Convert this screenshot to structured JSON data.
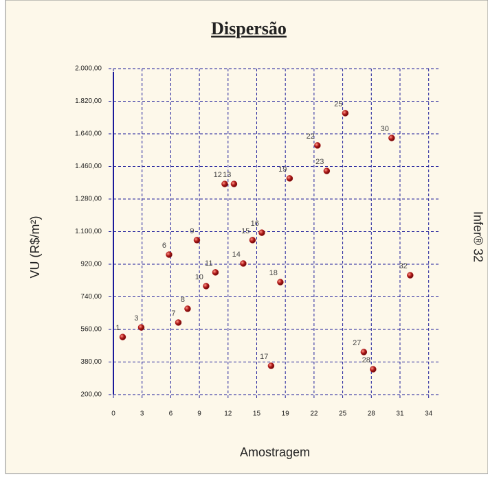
{
  "chart_data": {
    "type": "scatter",
    "title": "Dispersão",
    "x_label": "Amostragem",
    "y_label": "VU (R$/m²)",
    "side_label": "Infer® 32",
    "series": [
      {
        "color": "#b01818",
        "x": [
          1,
          3,
          6,
          7,
          8,
          9,
          10,
          11,
          12,
          13,
          14,
          15,
          16,
          17,
          18,
          19,
          22,
          23,
          25,
          27,
          28,
          30,
          32
        ],
        "values": [
          518,
          571,
          973,
          598,
          674,
          1053,
          799,
          875,
          1363,
          1363,
          924,
          1053,
          1094,
          359,
          821,
          1394,
          1576,
          1435,
          1754,
          435,
          340,
          1617,
          859
        ],
        "point_labels": [
          "1",
          "3",
          "6",
          "7",
          "8",
          "9",
          "10",
          "11",
          "12",
          "13",
          "14",
          "15",
          "16",
          "17",
          "18",
          "19",
          "22",
          "23",
          "25",
          "27",
          "28",
          "30",
          "32"
        ]
      }
    ],
    "xlim": [
      0,
      35.2
    ],
    "xticks": [
      0,
      {
        "value": 3.09,
        "label": "3"
      },
      {
        "value": 6.18,
        "label": "6"
      },
      {
        "value": 9.27,
        "label": "9"
      },
      {
        "value": 12.36,
        "label": "12"
      },
      {
        "value": 15.45,
        "label": "15"
      },
      {
        "value": 18.54,
        "label": "19"
      },
      {
        "value": 21.63,
        "label": "22"
      },
      {
        "value": 24.72,
        "label": "25"
      },
      {
        "value": 27.81,
        "label": "28"
      },
      {
        "value": 30.9,
        "label": "31"
      },
      {
        "value": 33.99,
        "label": "34"
      }
    ],
    "ylim": [
      200,
      2000
    ],
    "yticks": [
      {
        "value": 200,
        "label": "200,00"
      },
      {
        "value": 380,
        "label": "380,00"
      },
      {
        "value": 560,
        "label": "560,00"
      },
      {
        "value": 740,
        "label": "740,00"
      },
      {
        "value": 920,
        "label": "920,00"
      },
      {
        "value": 1100,
        "label": "1.100,00"
      },
      {
        "value": 1280,
        "label": "1.280,00"
      },
      {
        "value": 1460,
        "label": "1.460,00"
      },
      {
        "value": 1640,
        "label": "1.640,00"
      },
      {
        "value": 1820,
        "label": "1.820,00"
      },
      {
        "value": 2000,
        "label": "2.000,00"
      }
    ],
    "grid": true
  }
}
